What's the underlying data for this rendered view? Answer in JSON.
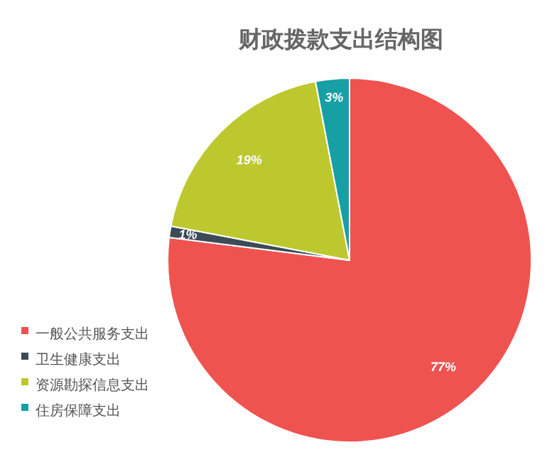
{
  "chart_data": {
    "type": "pie",
    "title": "财政拨款支出结构图",
    "categories": [
      "一般公共服务支出",
      "卫生健康支出",
      "资源勘探信息支出",
      "住房保障支出"
    ],
    "values": [
      77,
      1,
      19,
      3
    ],
    "value_labels": [
      "77%",
      "1%",
      "19%",
      "3%"
    ],
    "colors": [
      "#ef5350",
      "#3d4b57",
      "#bdc82f",
      "#169fa5"
    ],
    "legend": "bottom left"
  }
}
